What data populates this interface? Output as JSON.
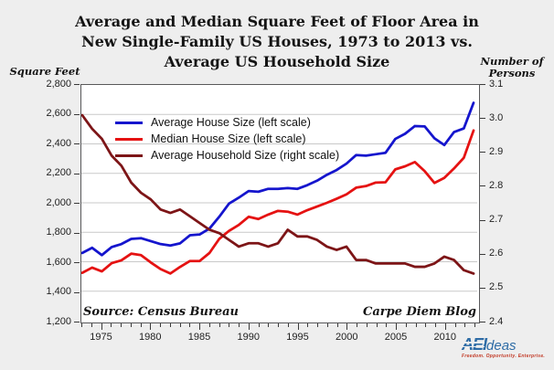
{
  "title": {
    "line1": "Average and Median Square Feet of Floor Area in",
    "line2": "New Single-Family US Houses, 1973 to 2013 vs.",
    "line3": "Average US Household Size"
  },
  "source": "Source: Census Bureau",
  "credit": "Carpe Diem Blog",
  "logo": {
    "mark": "AEI",
    "suffix": "deas",
    "tagline": "Freedom. Opportunity. Enterprise.",
    "blue": "#2e6ca6",
    "red": "#c23a26"
  },
  "colors": {
    "background": "#eeeeee",
    "plot_background": "#ffffff",
    "gridline": "#c9c9c9",
    "frame": "#58585a",
    "avg_house": "#1515cd",
    "median_house": "#e51212",
    "household": "#7d1517"
  },
  "chart_data": {
    "type": "line",
    "title": "Average and Median Square Feet of Floor Area in New Single-Family US Houses, 1973 to 2013 vs. Average US Household Size",
    "grid": "horizontal-only",
    "legend_position": "inside-top-left",
    "x": [
      1973,
      1974,
      1975,
      1976,
      1977,
      1978,
      1979,
      1980,
      1981,
      1982,
      1983,
      1984,
      1985,
      1986,
      1987,
      1988,
      1989,
      1990,
      1991,
      1992,
      1993,
      1994,
      1995,
      1996,
      1997,
      1998,
      1999,
      2000,
      2001,
      2002,
      2003,
      2004,
      2005,
      2006,
      2007,
      2008,
      2009,
      2010,
      2011,
      2012,
      2013
    ],
    "series": [
      {
        "id": "average-house-size",
        "name": "Average House Size (left scale)",
        "axis": "left",
        "color": "#1515cd",
        "values": [
          1660,
          1695,
          1645,
          1700,
          1720,
          1755,
          1760,
          1740,
          1720,
          1710,
          1725,
          1780,
          1785,
          1825,
          1905,
          1995,
          2035,
          2080,
          2075,
          2095,
          2095,
          2100,
          2095,
          2120,
          2150,
          2190,
          2223,
          2266,
          2324,
          2320,
          2330,
          2340,
          2434,
          2469,
          2521,
          2519,
          2438,
          2392,
          2480,
          2505,
          2679
        ]
      },
      {
        "id": "median-house-size",
        "name": "Median House Size (left scale)",
        "axis": "left",
        "color": "#e51212",
        "values": [
          1525,
          1560,
          1535,
          1590,
          1610,
          1655,
          1645,
          1595,
          1550,
          1520,
          1565,
          1605,
          1605,
          1660,
          1755,
          1810,
          1850,
          1905,
          1890,
          1920,
          1945,
          1940,
          1920,
          1950,
          1975,
          2000,
          2028,
          2057,
          2103,
          2114,
          2137,
          2140,
          2227,
          2248,
          2277,
          2215,
          2135,
          2169,
          2233,
          2306,
          2491
        ]
      },
      {
        "id": "average-household-size",
        "name": "Average Household Size (right scale)",
        "axis": "right",
        "color": "#7d1517",
        "values": [
          3.01,
          2.97,
          2.94,
          2.89,
          2.86,
          2.81,
          2.78,
          2.76,
          2.73,
          2.72,
          2.73,
          2.71,
          2.69,
          2.67,
          2.66,
          2.64,
          2.62,
          2.63,
          2.63,
          2.62,
          2.63,
          2.67,
          2.65,
          2.65,
          2.64,
          2.62,
          2.61,
          2.62,
          2.58,
          2.58,
          2.57,
          2.57,
          2.57,
          2.57,
          2.56,
          2.56,
          2.57,
          2.59,
          2.58,
          2.55,
          2.54
        ]
      }
    ],
    "axes": {
      "left": {
        "title": "Square Feet",
        "min": 1200,
        "max": 2800,
        "ticks": [
          {
            "value": 2800,
            "label": "2,800"
          },
          {
            "value": 2600,
            "label": "2,600"
          },
          {
            "value": 2400,
            "label": "2,400"
          },
          {
            "value": 2200,
            "label": "2,200"
          },
          {
            "value": 2000,
            "label": "2,000"
          },
          {
            "value": 1800,
            "label": "1,800"
          },
          {
            "value": 1600,
            "label": "1,600"
          },
          {
            "value": 1400,
            "label": "1,400"
          },
          {
            "value": 1200,
            "label": "1,200"
          }
        ]
      },
      "right": {
        "title_line1": "Number of",
        "title_line2": "Persons",
        "min": 2.4,
        "max": 3.1,
        "ticks": [
          {
            "value": 3.1,
            "label": "3.1"
          },
          {
            "value": 3.0,
            "label": "3.0"
          },
          {
            "value": 2.9,
            "label": "2.9"
          },
          {
            "value": 2.8,
            "label": "2.8"
          },
          {
            "value": 2.7,
            "label": "2.7"
          },
          {
            "value": 2.6,
            "label": "2.6"
          },
          {
            "value": 2.5,
            "label": "2.5"
          },
          {
            "value": 2.4,
            "label": "2.4"
          }
        ]
      },
      "x": {
        "min": 1973,
        "max": 2013,
        "minor_step": 1,
        "ticks": [
          {
            "value": 1975,
            "label": "1975"
          },
          {
            "value": 1980,
            "label": "1980"
          },
          {
            "value": 1985,
            "label": "1985"
          },
          {
            "value": 1990,
            "label": "1990"
          },
          {
            "value": 1995,
            "label": "1995"
          },
          {
            "value": 2000,
            "label": "2000"
          },
          {
            "value": 2005,
            "label": "2005"
          },
          {
            "value": 2010,
            "label": "2010"
          }
        ]
      }
    }
  }
}
